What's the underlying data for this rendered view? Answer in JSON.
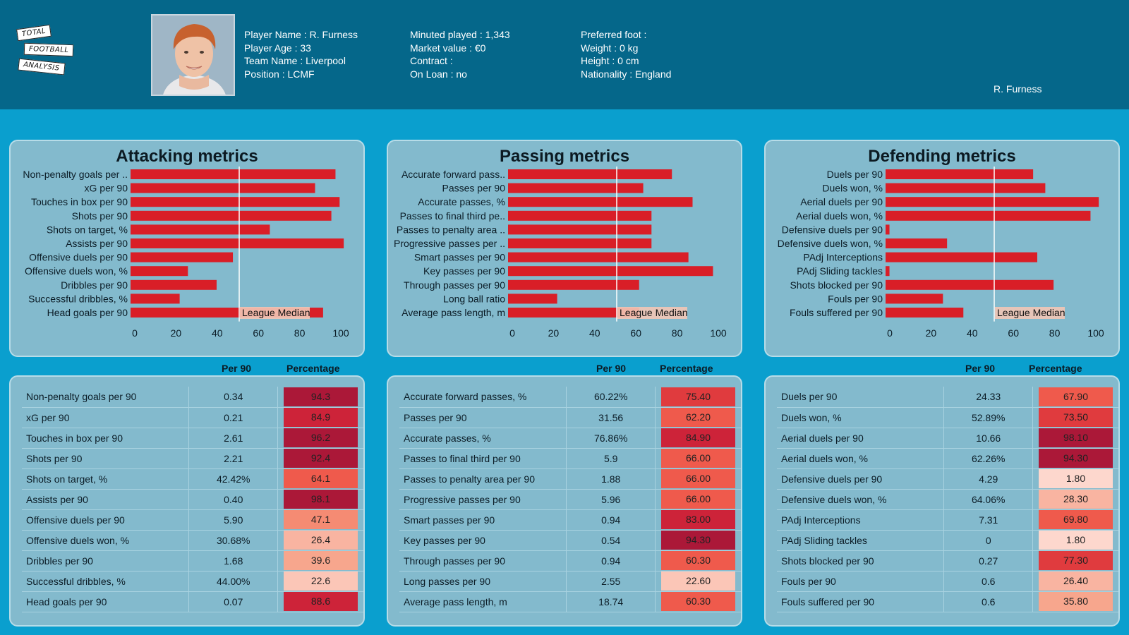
{
  "brand": {
    "logo_words": [
      "TOTAL",
      "FOOTBALL",
      "ANALYSIS"
    ]
  },
  "player": {
    "name_label": "Player Name : R. Furness",
    "age_label": "Player Age    : 33",
    "team_label": "Team Name : Liverpool",
    "position_label": "Position       : LCMF",
    "minutes_label": "Minuted played : 1,343",
    "market_label": "Market value     : €0",
    "contract_label": "Contract            :",
    "loan_label": "On Loan             : no",
    "foot_label": "Preferred foot :",
    "weight_label": "Weight              : 0 kg",
    "height_label": "Height               : 0 cm",
    "nationality_label": "Nationality       : England",
    "corner_name": "R. Furness"
  },
  "colors": {
    "bar": "#d91e27",
    "header": "#05678a",
    "background": "#0a9fce",
    "panel": "#83bacd"
  },
  "table_headers": {
    "per90": "Per 90",
    "percentage": "Percentage"
  },
  "median_label": "League Median",
  "chart_data": [
    {
      "type": "bar",
      "orientation": "horizontal",
      "title": "Attacking metrics",
      "xlim": [
        0,
        100
      ],
      "xticks": [
        0,
        20,
        40,
        60,
        80,
        100
      ],
      "median": 50,
      "categories": [
        "Non-penalty goals per ..",
        "xG per 90",
        "Touches in box per 90",
        "Shots per 90",
        "Shots on target, %",
        "Assists per 90",
        "Offensive duels per 90",
        "Offensive duels won, %",
        "Dribbles per 90",
        "Successful dribbles, %",
        "Head goals per 90"
      ],
      "values": [
        94.3,
        84.9,
        96.2,
        92.4,
        64.1,
        98.1,
        47.1,
        26.4,
        39.6,
        22.6,
        88.6
      ]
    },
    {
      "type": "bar",
      "orientation": "horizontal",
      "title": "Passing metrics",
      "xlim": [
        0,
        100
      ],
      "xticks": [
        0,
        20,
        40,
        60,
        80,
        100
      ],
      "median": 50,
      "categories": [
        "Accurate forward pass..",
        "Passes per 90",
        "Accurate passes, %",
        "Passes to final third pe..",
        "Passes to penalty area ..",
        "Progressive passes per ..",
        "Smart passes per 90",
        "Key passes per 90",
        "Through passes per 90",
        "Long ball ratio",
        "Average pass length, m"
      ],
      "values": [
        75.4,
        62.2,
        84.9,
        66.0,
        66.0,
        66.0,
        83.0,
        94.3,
        60.3,
        22.6,
        60.3
      ]
    },
    {
      "type": "bar",
      "orientation": "horizontal",
      "title": "Defending metrics",
      "xlim": [
        0,
        100
      ],
      "xticks": [
        0,
        20,
        40,
        60,
        80,
        100
      ],
      "median": 50,
      "categories": [
        "Duels per 90",
        "Duels won, %",
        "Aerial duels per 90",
        "Aerial duels won, %",
        "Defensive duels per 90",
        "Defensive duels won, %",
        "PAdj Interceptions",
        "PAdj Sliding tackles",
        "Shots blocked per 90",
        "Fouls per 90",
        "Fouls suffered per 90"
      ],
      "values": [
        67.9,
        73.5,
        98.1,
        94.3,
        1.8,
        28.3,
        69.8,
        1.8,
        77.3,
        26.4,
        35.8
      ]
    }
  ],
  "tables": [
    {
      "rows": [
        {
          "name": "Non-penalty goals per 90",
          "per90": "0.34",
          "pct": "94.3",
          "pct_value": 94.3
        },
        {
          "name": "xG per 90",
          "per90": "0.21",
          "pct": "84.9",
          "pct_value": 84.9
        },
        {
          "name": "Touches in box per 90",
          "per90": "2.61",
          "pct": "96.2",
          "pct_value": 96.2
        },
        {
          "name": "Shots per 90",
          "per90": "2.21",
          "pct": "92.4",
          "pct_value": 92.4
        },
        {
          "name": "Shots on target, %",
          "per90": "42.42%",
          "pct": "64.1",
          "pct_value": 64.1
        },
        {
          "name": "Assists per 90",
          "per90": "0.40",
          "pct": "98.1",
          "pct_value": 98.1
        },
        {
          "name": "Offensive duels per 90",
          "per90": "5.90",
          "pct": "47.1",
          "pct_value": 47.1
        },
        {
          "name": "Offensive duels won, %",
          "per90": "30.68%",
          "pct": "26.4",
          "pct_value": 26.4
        },
        {
          "name": "Dribbles per 90",
          "per90": "1.68",
          "pct": "39.6",
          "pct_value": 39.6
        },
        {
          "name": "Successful dribbles, %",
          "per90": "44.00%",
          "pct": "22.6",
          "pct_value": 22.6
        },
        {
          "name": "Head goals per 90",
          "per90": "0.07",
          "pct": "88.6",
          "pct_value": 88.6
        }
      ]
    },
    {
      "rows": [
        {
          "name": "Accurate forward passes, %",
          "per90": "60.22%",
          "pct": "75.40",
          "pct_value": 75.4
        },
        {
          "name": "Passes per 90",
          "per90": "31.56",
          "pct": "62.20",
          "pct_value": 62.2
        },
        {
          "name": "Accurate passes, %",
          "per90": "76.86%",
          "pct": "84.90",
          "pct_value": 84.9
        },
        {
          "name": "Passes to final third per 90",
          "per90": "5.9",
          "pct": "66.00",
          "pct_value": 66.0
        },
        {
          "name": "Passes to penalty area per 90",
          "per90": "1.88",
          "pct": "66.00",
          "pct_value": 66.0
        },
        {
          "name": "Progressive passes per 90",
          "per90": "5.96",
          "pct": "66.00",
          "pct_value": 66.0
        },
        {
          "name": "Smart passes per 90",
          "per90": "0.94",
          "pct": "83.00",
          "pct_value": 83.0
        },
        {
          "name": "Key passes per 90",
          "per90": "0.54",
          "pct": "94.30",
          "pct_value": 94.3
        },
        {
          "name": "Through passes per 90",
          "per90": "0.94",
          "pct": "60.30",
          "pct_value": 60.3
        },
        {
          "name": "Long passes per 90",
          "per90": "2.55",
          "pct": "22.60",
          "pct_value": 22.6
        },
        {
          "name": "Average pass length, m",
          "per90": "18.74",
          "pct": "60.30",
          "pct_value": 60.3
        }
      ]
    },
    {
      "rows": [
        {
          "name": "Duels per 90",
          "per90": "24.33",
          "pct": "67.90",
          "pct_value": 67.9
        },
        {
          "name": "Duels won, %",
          "per90": "52.89%",
          "pct": "73.50",
          "pct_value": 73.5
        },
        {
          "name": "Aerial duels per 90",
          "per90": "10.66",
          "pct": "98.10",
          "pct_value": 98.1
        },
        {
          "name": "Aerial duels won, %",
          "per90": "62.26%",
          "pct": "94.30",
          "pct_value": 94.3
        },
        {
          "name": "Defensive duels per 90",
          "per90": "4.29",
          "pct": "1.80",
          "pct_value": 1.8
        },
        {
          "name": "Defensive duels won, %",
          "per90": "64.06%",
          "pct": "28.30",
          "pct_value": 28.3
        },
        {
          "name": "PAdj Interceptions",
          "per90": "7.31",
          "pct": "69.80",
          "pct_value": 69.8
        },
        {
          "name": "PAdj Sliding tackles",
          "per90": "0",
          "pct": "1.80",
          "pct_value": 1.8
        },
        {
          "name": "Shots blocked per 90",
          "per90": "0.27",
          "pct": "77.30",
          "pct_value": 77.3
        },
        {
          "name": "Fouls per 90",
          "per90": "0.6",
          "pct": "26.40",
          "pct_value": 26.4
        },
        {
          "name": "Fouls suffered per 90",
          "per90": "0.6",
          "pct": "35.80",
          "pct_value": 35.8
        }
      ]
    }
  ]
}
